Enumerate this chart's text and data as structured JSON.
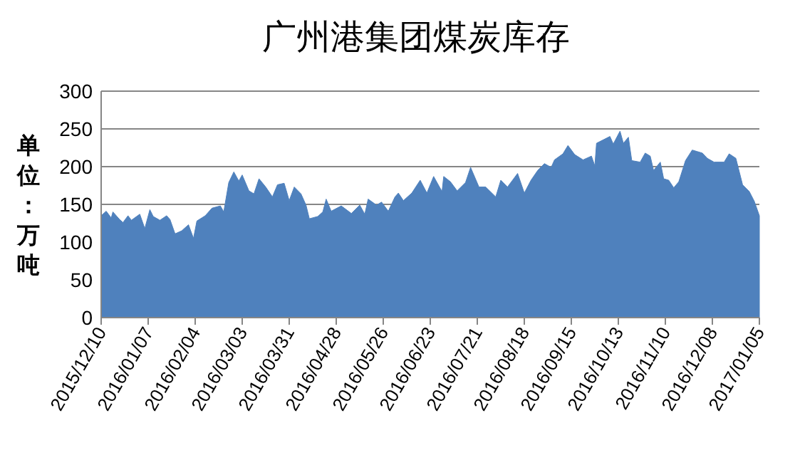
{
  "chart_data": {
    "type": "area",
    "title": "广州港集团煤炭库存",
    "ylabel": "单位：万吨",
    "xlim": [
      "2015-12-10",
      "2017-01-05"
    ],
    "xticks": [
      {
        "value": "2015-12-10",
        "label": "2015/12/10"
      },
      {
        "value": "2016-01-07",
        "label": "2016/01/07"
      },
      {
        "value": "2016-02-04",
        "label": "2016/02/04"
      },
      {
        "value": "2016-03-03",
        "label": "2016/03/03"
      },
      {
        "value": "2016-03-31",
        "label": "2016/03/31"
      },
      {
        "value": "2016-04-28",
        "label": "2016/04/28"
      },
      {
        "value": "2016-05-26",
        "label": "2016/05/26"
      },
      {
        "value": "2016-06-23",
        "label": "2016/06/23"
      },
      {
        "value": "2016-07-21",
        "label": "2016/07/21"
      },
      {
        "value": "2016-08-18",
        "label": "2016/08/18"
      },
      {
        "value": "2016-09-15",
        "label": "2016/09/15"
      },
      {
        "value": "2016-10-13",
        "label": "2016/10/13"
      },
      {
        "value": "2016-11-10",
        "label": "2016/11/10"
      },
      {
        "value": "2016-12-08",
        "label": "2016/12/08"
      },
      {
        "value": "2017-01-05",
        "label": "2017/01/05"
      }
    ],
    "ylim": [
      0,
      300
    ],
    "yticks": [
      0,
      50,
      100,
      150,
      200,
      250,
      300
    ],
    "grid": "y",
    "series": [
      {
        "color": "#4f81bd",
        "x": [
          "2015-12-10",
          "2015-12-13",
          "2015-12-16",
          "2015-12-17",
          "2015-12-21",
          "2015-12-23",
          "2015-12-26",
          "2015-12-28",
          "2016-01-02",
          "2016-01-05",
          "2016-01-08",
          "2016-01-10",
          "2016-01-14",
          "2016-01-18",
          "2016-01-20",
          "2016-01-23",
          "2016-01-27",
          "2016-01-31",
          "2016-02-03",
          "2016-02-05",
          "2016-02-10",
          "2016-02-14",
          "2016-02-19",
          "2016-02-21",
          "2016-02-24",
          "2016-02-27",
          "2016-03-01",
          "2016-03-03",
          "2016-03-07",
          "2016-03-10",
          "2016-03-13",
          "2016-03-17",
          "2016-03-21",
          "2016-03-24",
          "2016-03-28",
          "2016-03-31",
          "2016-04-03",
          "2016-04-07",
          "2016-04-10",
          "2016-04-12",
          "2016-04-17",
          "2016-04-20",
          "2016-04-22",
          "2016-04-25",
          "2016-05-01",
          "2016-05-07",
          "2016-05-12",
          "2016-05-15",
          "2016-05-17",
          "2016-05-22",
          "2016-05-25",
          "2016-05-29",
          "2016-06-02",
          "2016-06-04",
          "2016-06-07",
          "2016-06-12",
          "2016-06-17",
          "2016-06-21",
          "2016-06-25",
          "2016-06-30",
          "2016-07-01",
          "2016-07-05",
          "2016-07-09",
          "2016-07-14",
          "2016-07-17",
          "2016-07-22",
          "2016-07-26",
          "2016-08-01",
          "2016-08-04",
          "2016-08-08",
          "2016-08-14",
          "2016-08-18",
          "2016-08-22",
          "2016-08-26",
          "2016-08-30",
          "2016-09-03",
          "2016-09-05",
          "2016-09-10",
          "2016-09-13",
          "2016-09-17",
          "2016-09-22",
          "2016-09-27",
          "2016-09-29",
          "2016-09-30",
          "2016-10-08",
          "2016-10-10",
          "2016-10-14",
          "2016-10-16",
          "2016-10-19",
          "2016-10-21",
          "2016-10-26",
          "2016-10-29",
          "2016-11-01",
          "2016-11-03",
          "2016-11-07",
          "2016-11-09",
          "2016-11-12",
          "2016-11-15",
          "2016-11-18",
          "2016-11-22",
          "2016-11-26",
          "2016-11-29",
          "2016-12-02",
          "2016-12-05",
          "2016-12-09",
          "2016-12-15",
          "2016-12-18",
          "2016-12-22",
          "2016-12-26",
          "2016-12-30",
          "2017-01-02",
          "2017-01-05"
        ],
        "values": [
          135,
          141,
          132,
          140,
          130,
          126,
          135,
          129,
          137,
          118,
          143,
          134,
          129,
          135,
          130,
          111,
          115,
          123,
          105,
          128,
          135,
          145,
          148,
          140,
          179,
          193,
          181,
          189,
          168,
          164,
          184,
          173,
          160,
          176,
          178,
          155,
          173,
          164,
          149,
          131,
          134,
          140,
          157,
          141,
          148,
          138,
          149,
          137,
          157,
          149,
          153,
          141,
          160,
          165,
          155,
          165,
          182,
          165,
          187,
          167,
          187,
          180,
          168,
          179,
          199,
          173,
          173,
          160,
          182,
          173,
          191,
          165,
          182,
          195,
          204,
          199,
          209,
          217,
          228,
          216,
          209,
          214,
          201,
          231,
          240,
          230,
          247,
          231,
          239,
          208,
          206,
          218,
          214,
          195,
          206,
          184,
          182,
          172,
          180,
          208,
          222,
          220,
          218,
          211,
          206,
          206,
          217,
          211,
          176,
          167,
          154,
          135
        ]
      }
    ]
  }
}
